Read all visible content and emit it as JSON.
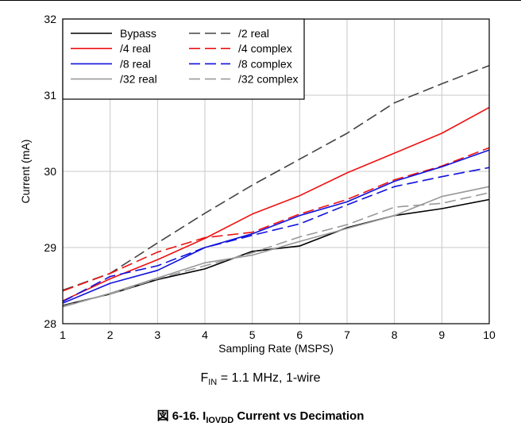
{
  "chart_data": {
    "type": "line",
    "xlabel": "Sampling Rate (MSPS)",
    "ylabel": "Current (mA)",
    "xlim": [
      1,
      10
    ],
    "ylim": [
      28,
      32
    ],
    "xticks": [
      "1",
      "2",
      "3",
      "4",
      "5",
      "6",
      "7",
      "8",
      "9",
      "10"
    ],
    "yticks": [
      "28",
      "29",
      "30",
      "31",
      "32"
    ],
    "grid": true,
    "legend_position": "top-left",
    "x": [
      1,
      2,
      3,
      4,
      5,
      6,
      7,
      8,
      9,
      10
    ],
    "series": [
      {
        "name": "Bypass",
        "color": "#000000",
        "dash": "solid",
        "values": [
          28.24,
          28.39,
          28.58,
          28.72,
          28.95,
          29.02,
          29.26,
          29.42,
          29.51,
          29.63
        ]
      },
      {
        "name": "/2 real",
        "color": "#444444",
        "dash": "dashed",
        "values": [
          28.44,
          28.66,
          29.06,
          29.45,
          29.82,
          30.16,
          30.5,
          30.9,
          31.15,
          31.39
        ]
      },
      {
        "name": "/4 real",
        "color": "#ee1111",
        "dash": "solid",
        "values": [
          28.3,
          28.59,
          28.84,
          29.12,
          29.44,
          29.68,
          29.98,
          30.24,
          30.5,
          30.84
        ]
      },
      {
        "name": "/4 complex",
        "color": "#ee1111",
        "dash": "dashed",
        "values": [
          28.43,
          28.66,
          28.94,
          29.13,
          29.2,
          29.44,
          29.63,
          29.89,
          30.07,
          30.31
        ]
      },
      {
        "name": "/8 real",
        "color": "#1111dd",
        "dash": "solid",
        "values": [
          28.27,
          28.53,
          28.7,
          29.0,
          29.18,
          29.42,
          29.6,
          29.87,
          30.06,
          30.28
        ]
      },
      {
        "name": "/8 complex",
        "color": "#1111dd",
        "dash": "dashed",
        "values": [
          28.29,
          28.62,
          28.76,
          29.0,
          29.16,
          29.31,
          29.56,
          29.8,
          29.93,
          30.05
        ]
      },
      {
        "name": "/32 real",
        "color": "#999999",
        "dash": "solid",
        "values": [
          28.22,
          28.4,
          28.6,
          28.8,
          28.9,
          29.08,
          29.25,
          29.42,
          29.67,
          29.8
        ]
      },
      {
        "name": "/32 complex",
        "color": "#999999",
        "dash": "dashed",
        "values": [
          28.23,
          28.39,
          28.59,
          28.76,
          28.93,
          29.14,
          29.3,
          29.53,
          29.58,
          29.72
        ]
      }
    ]
  },
  "condition": {
    "prefix": "F",
    "sub": "IN",
    "rest": " = 1.1 MHz, 1-wire"
  },
  "caption": {
    "prefix": "図 6-16. I",
    "sub": "IOVDD",
    "rest": " Current vs Decimation"
  }
}
